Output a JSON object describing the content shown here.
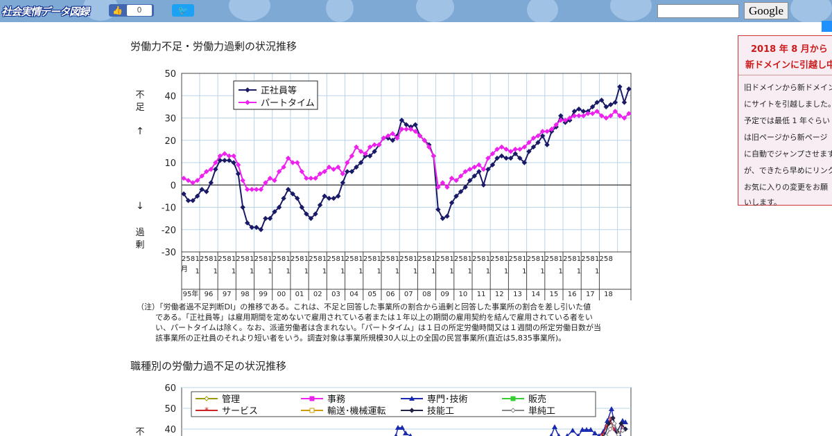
{
  "header": {
    "logo_text": "社会実情データ図録",
    "like_icon": "thumbs-up-icon",
    "like_count": "0",
    "tweet_icon": "twitter-bird-icon",
    "search_placeholder": "",
    "search_button": "Google",
    "bar_color": "#7ea9d4"
  },
  "notice": {
    "line1": "2018 年 8 月から",
    "line2": "新ドメインに引越し中",
    "body": [
      "旧ドメインから新ドメイン",
      "にサイトを引越しました。",
      "予定では最低 1 年ぐらい",
      "は旧ページから新ページ",
      "に自動でジャンプさせます",
      "が、できたら早めにリンクや",
      "お気に入りの変更をお願",
      "いします。"
    ]
  },
  "chart1_title": "労働力不足・労働力過剰の状況推移",
  "chart1_note": [
    "（注）「労働者過不足判断DI」の推移である。これは、不足と回答した事業所の割合から過剰と回答した事業所の割合を差し引いた値",
    "である。「正社員等」は雇用期間を定めないで雇用されている者または１年以上の期間の雇用契約を結んで雇用されている者をい",
    "い、パートタイムは除く。なお、派遣労働者は含まれない。「パートタイム」は１日の所定労働時間又は１週間の所定労働日数が当",
    "該事業所の正社員のそれより短い者をいう。調査対象は事業所規模30人以上の全国の民営事業所(直近は5,835事業所)。"
  ],
  "chart2_title": "職種別の労働力過不足の状況推移",
  "chart_data": [
    {
      "type": "line",
      "title": "労働力不足・労働力過剰の状況推移",
      "ylabel_top": "不足",
      "ylabel_arrow_up": "↑",
      "ylabel_arrow_down": "↓",
      "ylabel_bottom": "過剰",
      "ylim": [
        -30,
        50
      ],
      "y_ticks": [
        -30,
        -20,
        -10,
        0,
        10,
        20,
        30,
        40,
        50
      ],
      "month_ticks": [
        "2",
        "5",
        "8",
        "11"
      ],
      "month_label": "月",
      "years": [
        "95年",
        "96",
        "97",
        "98",
        "99",
        "00",
        "01",
        "02",
        "03",
        "04",
        "05",
        "06",
        "07",
        "08",
        "09",
        "10",
        "11",
        "12",
        "13",
        "14",
        "15",
        "16",
        "17",
        "18"
      ],
      "last_year_months": [
        "2",
        "5",
        "8"
      ],
      "grid": true,
      "legend_position": "top-left",
      "series": [
        {
          "name": "正社員等",
          "color": "#1a1a66",
          "marker": "diamond",
          "values": [
            -4,
            -7,
            -7,
            -5,
            -2,
            -3,
            1,
            7,
            11,
            11,
            11,
            10,
            5,
            -10,
            -17,
            -19,
            -19,
            -20,
            -15,
            -15,
            -12,
            -10,
            -6,
            -2,
            -4,
            -6,
            -10,
            -13,
            -15,
            -13,
            -9,
            -5,
            -6,
            -6,
            -5,
            1,
            6,
            6,
            8,
            10,
            13,
            13,
            15,
            18,
            21,
            21,
            20,
            22,
            29,
            27,
            26,
            27,
            22,
            20,
            18,
            13,
            -11,
            -15,
            -14,
            -8,
            -5,
            -3,
            -1,
            2,
            4,
            6,
            0,
            7,
            9,
            12,
            13,
            12,
            12,
            14,
            12,
            10,
            15,
            17,
            19,
            22,
            18,
            24,
            26,
            31,
            28,
            29,
            33,
            34,
            33,
            33,
            35,
            37,
            38,
            35,
            36,
            37,
            44,
            37,
            43
          ]
        },
        {
          "name": "パートタイム",
          "color": "#ee22ee",
          "marker": "diamond",
          "values": [
            3,
            2,
            1,
            2,
            4,
            6,
            7,
            10,
            13,
            14,
            13,
            13,
            9,
            2,
            -2,
            -2,
            -2,
            -2,
            1,
            3,
            2,
            6,
            8,
            12,
            10,
            10,
            6,
            3,
            3,
            3,
            5,
            6,
            8,
            7,
            8,
            5,
            10,
            13,
            17,
            15,
            14,
            17,
            18,
            18,
            21,
            22,
            23,
            21,
            25,
            25,
            25,
            24,
            22,
            20,
            17,
            13,
            -1,
            1,
            -1,
            3,
            2,
            4,
            6,
            7,
            8,
            9,
            7,
            12,
            14,
            16,
            17,
            16,
            15,
            16,
            16,
            17,
            19,
            21,
            22,
            24,
            24,
            25,
            27,
            29,
            29,
            30,
            31,
            31,
            31,
            32,
            32,
            33,
            31,
            30,
            31,
            33,
            31,
            30,
            32
          ]
        }
      ]
    },
    {
      "type": "line",
      "title": "職種別の労働力過不足の状況推移",
      "ylim": [
        40,
        60
      ],
      "y_ticks": [
        40,
        50,
        60
      ],
      "ylabel_top": "不",
      "series": [
        {
          "name": "管理",
          "color": "#999900",
          "marker": "diamond-hollow"
        },
        {
          "name": "事務",
          "color": "#ee22ee",
          "marker": "square"
        },
        {
          "name": "専門･技術",
          "color": "#1a2ab0",
          "marker": "triangle"
        },
        {
          "name": "販売",
          "color": "#33cc33",
          "marker": "square"
        },
        {
          "name": "サービス",
          "color": "#cc2222",
          "marker": "star"
        },
        {
          "name": "輸送･機械運転",
          "color": "#cc9900",
          "marker": "square-hollow"
        },
        {
          "name": "技能工",
          "color": "#222244",
          "marker": "diamond"
        },
        {
          "name": "単純工",
          "color": "#888888",
          "marker": "diamond-hollow"
        }
      ]
    }
  ]
}
